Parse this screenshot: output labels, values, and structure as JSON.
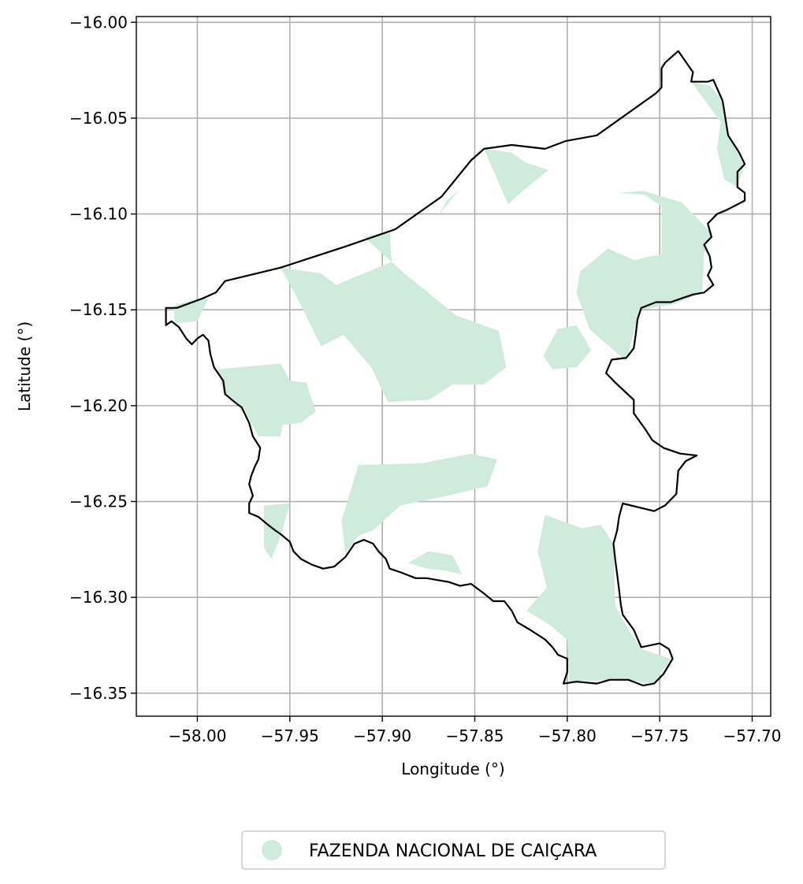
{
  "chart_data": {
    "type": "map",
    "xlabel": "Longitude (°)",
    "ylabel": "Latitude (°)",
    "xlim": [
      -58.033,
      -57.69
    ],
    "ylim": [
      -16.362,
      -15.997
    ],
    "grid": true,
    "x_ticks": [
      {
        "value": -58.0,
        "label": "−58.00"
      },
      {
        "value": -57.95,
        "label": "−57.95"
      },
      {
        "value": -57.9,
        "label": "−57.90"
      },
      {
        "value": -57.85,
        "label": "−57.85"
      },
      {
        "value": -57.8,
        "label": "−57.80"
      },
      {
        "value": -57.75,
        "label": "−57.75"
      },
      {
        "value": -57.7,
        "label": "−57.70"
      }
    ],
    "y_ticks": [
      {
        "value": -16.0,
        "label": "−16.00"
      },
      {
        "value": -16.05,
        "label": "−16.05"
      },
      {
        "value": -16.1,
        "label": "−16.10"
      },
      {
        "value": -16.15,
        "label": "−16.15"
      },
      {
        "value": -16.2,
        "label": "−16.20"
      },
      {
        "value": -16.25,
        "label": "−16.25"
      },
      {
        "value": -16.3,
        "label": "−16.30"
      },
      {
        "value": -16.35,
        "label": "−16.35"
      }
    ],
    "legend": {
      "placement": "bottom-center",
      "entries": [
        {
          "label": "FAZENDA NACIONAL DE CAIÇARA",
          "color": "#ceebdc"
        }
      ]
    },
    "fill_color": "#ceebdc",
    "outline_color": "#000000",
    "boundary": [
      [
        -58.017,
        -16.149
      ],
      [
        -58.011,
        -16.149
      ],
      [
        -57.997,
        -16.144
      ],
      [
        -57.99,
        -16.141
      ],
      [
        -57.985,
        -16.135
      ],
      [
        -57.955,
        -16.128
      ],
      [
        -57.92,
        -16.117
      ],
      [
        -57.893,
        -16.108
      ],
      [
        -57.868,
        -16.091
      ],
      [
        -57.852,
        -16.072
      ],
      [
        -57.845,
        -16.066
      ],
      [
        -57.83,
        -16.064
      ],
      [
        -57.812,
        -16.066
      ],
      [
        -57.801,
        -16.062
      ],
      [
        -57.784,
        -16.059
      ],
      [
        -57.752,
        -16.037
      ],
      [
        -57.749,
        -16.034
      ],
      [
        -57.749,
        -16.024
      ],
      [
        -57.747,
        -16.021
      ],
      [
        -57.74,
        -16.015
      ],
      [
        -57.732,
        -16.026
      ],
      [
        -57.733,
        -16.031
      ],
      [
        -57.724,
        -16.031
      ],
      [
        -57.721,
        -16.03
      ],
      [
        -57.716,
        -16.041
      ],
      [
        -57.713,
        -16.059
      ],
      [
        -57.707,
        -16.068
      ],
      [
        -57.704,
        -16.074
      ],
      [
        -57.708,
        -16.078
      ],
      [
        -57.708,
        -16.086
      ],
      [
        -57.704,
        -16.089
      ],
      [
        -57.704,
        -16.093
      ],
      [
        -57.71,
        -16.096
      ],
      [
        -57.714,
        -16.098
      ],
      [
        -57.719,
        -16.1
      ],
      [
        -57.724,
        -16.105
      ],
      [
        -57.722,
        -16.112
      ],
      [
        -57.726,
        -16.116
      ],
      [
        -57.723,
        -16.122
      ],
      [
        -57.722,
        -16.128
      ],
      [
        -57.724,
        -16.132
      ],
      [
        -57.721,
        -16.137
      ],
      [
        -57.726,
        -16.141
      ],
      [
        -57.732,
        -16.142
      ],
      [
        -57.738,
        -16.144
      ],
      [
        -57.744,
        -16.146
      ],
      [
        -57.752,
        -16.146
      ],
      [
        -57.76,
        -16.149
      ],
      [
        -57.762,
        -16.155
      ],
      [
        -57.763,
        -16.163
      ],
      [
        -57.764,
        -16.17
      ],
      [
        -57.768,
        -16.175
      ],
      [
        -57.776,
        -16.176
      ],
      [
        -57.779,
        -16.183
      ],
      [
        -57.774,
        -16.188
      ],
      [
        -57.764,
        -16.197
      ],
      [
        -57.764,
        -16.204
      ],
      [
        -57.758,
        -16.212
      ],
      [
        -57.754,
        -16.218
      ],
      [
        -57.748,
        -16.222
      ],
      [
        -57.739,
        -16.225
      ],
      [
        -57.73,
        -16.226
      ],
      [
        -57.736,
        -16.229
      ],
      [
        -57.74,
        -16.234
      ],
      [
        -57.741,
        -16.246
      ],
      [
        -57.747,
        -16.252
      ],
      [
        -57.753,
        -16.255
      ],
      [
        -57.77,
        -16.251
      ],
      [
        -57.772,
        -16.258
      ],
      [
        -57.773,
        -16.265
      ],
      [
        -57.775,
        -16.272
      ],
      [
        -57.774,
        -16.281
      ],
      [
        -57.773,
        -16.288
      ],
      [
        -57.772,
        -16.296
      ],
      [
        -57.771,
        -16.304
      ],
      [
        -57.77,
        -16.309
      ],
      [
        -57.764,
        -16.317
      ],
      [
        -57.76,
        -16.326
      ],
      [
        -57.75,
        -16.324
      ],
      [
        -57.745,
        -16.327
      ],
      [
        -57.743,
        -16.332
      ],
      [
        -57.748,
        -16.34
      ],
      [
        -57.753,
        -16.345
      ],
      [
        -57.759,
        -16.346
      ],
      [
        -57.767,
        -16.343
      ],
      [
        -57.777,
        -16.343
      ],
      [
        -57.784,
        -16.345
      ],
      [
        -57.795,
        -16.344
      ],
      [
        -57.802,
        -16.345
      ],
      [
        -57.8,
        -16.339
      ],
      [
        -57.8,
        -16.332
      ],
      [
        -57.805,
        -16.33
      ],
      [
        -57.808,
        -16.326
      ],
      [
        -57.812,
        -16.322
      ],
      [
        -57.82,
        -16.317
      ],
      [
        -57.827,
        -16.313
      ],
      [
        -57.83,
        -16.307
      ],
      [
        -57.834,
        -16.302
      ],
      [
        -57.84,
        -16.302
      ],
      [
        -57.845,
        -16.298
      ],
      [
        -57.852,
        -16.293
      ],
      [
        -57.858,
        -16.294
      ],
      [
        -57.864,
        -16.292
      ],
      [
        -57.87,
        -16.291
      ],
      [
        -57.876,
        -16.29
      ],
      [
        -57.882,
        -16.29
      ],
      [
        -57.89,
        -16.287
      ],
      [
        -57.896,
        -16.285
      ],
      [
        -57.898,
        -16.28
      ],
      [
        -57.902,
        -16.276
      ],
      [
        -57.905,
        -16.272
      ],
      [
        -57.91,
        -16.27
      ],
      [
        -57.915,
        -16.272
      ],
      [
        -57.92,
        -16.279
      ],
      [
        -57.926,
        -16.284
      ],
      [
        -57.932,
        -16.285
      ],
      [
        -57.938,
        -16.283
      ],
      [
        -57.944,
        -16.28
      ],
      [
        -57.948,
        -16.276
      ],
      [
        -57.95,
        -16.271
      ],
      [
        -57.955,
        -16.267
      ],
      [
        -57.958,
        -16.265
      ],
      [
        -57.962,
        -16.262
      ],
      [
        -57.967,
        -16.258
      ],
      [
        -57.972,
        -16.256
      ],
      [
        -57.972,
        -16.251
      ],
      [
        -57.97,
        -16.247
      ],
      [
        -57.972,
        -16.241
      ],
      [
        -57.971,
        -16.237
      ],
      [
        -57.969,
        -16.232
      ],
      [
        -57.967,
        -16.228
      ],
      [
        -57.966,
        -16.222
      ],
      [
        -57.97,
        -16.216
      ],
      [
        -57.972,
        -16.209
      ],
      [
        -57.976,
        -16.201
      ],
      [
        -57.98,
        -16.198
      ],
      [
        -57.985,
        -16.194
      ],
      [
        -57.986,
        -16.187
      ],
      [
        -57.991,
        -16.18
      ],
      [
        -57.993,
        -16.173
      ],
      [
        -57.994,
        -16.166
      ],
      [
        -57.997,
        -16.163
      ],
      [
        -58.0,
        -16.165
      ],
      [
        -58.003,
        -16.168
      ],
      [
        -58.006,
        -16.165
      ],
      [
        -58.01,
        -16.159
      ],
      [
        -58.014,
        -16.156
      ],
      [
        -58.017,
        -16.158
      ],
      [
        -58.017,
        -16.149
      ]
    ],
    "zones": [
      [
        [
          -58.013,
          -16.148
        ],
        [
          -58.003,
          -16.145
        ],
        [
          -57.994,
          -16.144
        ],
        [
          -58.0,
          -16.156
        ],
        [
          -58.012,
          -16.157
        ]
      ],
      [
        [
          -57.989,
          -16.181
        ],
        [
          -57.955,
          -16.178
        ],
        [
          -57.95,
          -16.187
        ],
        [
          -57.941,
          -16.188
        ],
        [
          -57.936,
          -16.203
        ],
        [
          -57.944,
          -16.209
        ],
        [
          -57.954,
          -16.21
        ],
        [
          -57.955,
          -16.216
        ],
        [
          -57.967,
          -16.216
        ],
        [
          -57.976,
          -16.2
        ],
        [
          -57.986,
          -16.193
        ]
      ],
      [
        [
          -57.955,
          -16.128
        ],
        [
          -57.933,
          -16.131
        ],
        [
          -57.925,
          -16.137
        ],
        [
          -57.895,
          -16.125
        ],
        [
          -57.896,
          -16.109
        ],
        [
          -57.91,
          -16.112
        ],
        [
          -57.888,
          -16.131
        ],
        [
          -57.86,
          -16.153
        ],
        [
          -57.837,
          -16.161
        ],
        [
          -57.833,
          -16.18
        ],
        [
          -57.845,
          -16.189
        ],
        [
          -57.862,
          -16.189
        ],
        [
          -57.875,
          -16.197
        ],
        [
          -57.897,
          -16.198
        ],
        [
          -57.906,
          -16.18
        ],
        [
          -57.921,
          -16.163
        ],
        [
          -57.933,
          -16.169
        ],
        [
          -57.946,
          -16.144
        ]
      ],
      [
        [
          -57.865,
          -16.093
        ],
        [
          -57.858,
          -16.087
        ],
        [
          -57.87,
          -16.101
        ]
      ],
      [
        [
          -57.845,
          -16.066
        ],
        [
          -57.83,
          -16.068
        ],
        [
          -57.823,
          -16.073
        ],
        [
          -57.81,
          -16.077
        ],
        [
          -57.823,
          -16.087
        ],
        [
          -57.832,
          -16.095
        ],
        [
          -57.841,
          -16.075
        ]
      ],
      [
        [
          -57.773,
          -16.089
        ],
        [
          -57.758,
          -16.09
        ],
        [
          -57.749,
          -16.096
        ],
        [
          -57.749,
          -16.121
        ],
        [
          -57.764,
          -16.124
        ],
        [
          -57.778,
          -16.118
        ],
        [
          -57.793,
          -16.13
        ],
        [
          -57.795,
          -16.141
        ],
        [
          -57.788,
          -16.16
        ],
        [
          -57.768,
          -16.177
        ],
        [
          -57.761,
          -16.15
        ],
        [
          -57.742,
          -16.147
        ],
        [
          -57.727,
          -16.141
        ],
        [
          -57.726,
          -16.121
        ],
        [
          -57.722,
          -16.11
        ],
        [
          -57.738,
          -16.094
        ],
        [
          -57.759,
          -16.088
        ]
      ],
      [
        [
          -57.733,
          -16.031
        ],
        [
          -57.723,
          -16.033
        ],
        [
          -57.716,
          -16.041
        ],
        [
          -57.713,
          -16.059
        ],
        [
          -57.707,
          -16.068
        ],
        [
          -57.704,
          -16.074
        ],
        [
          -57.708,
          -16.086
        ],
        [
          -57.715,
          -16.082
        ],
        [
          -57.719,
          -16.066
        ],
        [
          -57.717,
          -16.052
        ]
      ],
      [
        [
          -57.805,
          -16.16
        ],
        [
          -57.795,
          -16.158
        ],
        [
          -57.787,
          -16.171
        ],
        [
          -57.795,
          -16.18
        ],
        [
          -57.808,
          -16.181
        ],
        [
          -57.813,
          -16.174
        ]
      ],
      [
        [
          -57.913,
          -16.231
        ],
        [
          -57.878,
          -16.23
        ],
        [
          -57.852,
          -16.225
        ],
        [
          -57.838,
          -16.228
        ],
        [
          -57.843,
          -16.242
        ],
        [
          -57.865,
          -16.247
        ],
        [
          -57.89,
          -16.252
        ],
        [
          -57.905,
          -16.265
        ],
        [
          -57.913,
          -16.268
        ],
        [
          -57.92,
          -16.277
        ],
        [
          -57.922,
          -16.26
        ]
      ],
      [
        [
          -57.95,
          -16.251
        ],
        [
          -57.955,
          -16.268
        ],
        [
          -57.96,
          -16.28
        ],
        [
          -57.964,
          -16.274
        ],
        [
          -57.964,
          -16.252
        ]
      ],
      [
        [
          -57.886,
          -16.282
        ],
        [
          -57.876,
          -16.285
        ],
        [
          -57.866,
          -16.286
        ],
        [
          -57.857,
          -16.288
        ],
        [
          -57.862,
          -16.278
        ],
        [
          -57.875,
          -16.276
        ]
      ],
      [
        [
          -57.812,
          -16.257
        ],
        [
          -57.792,
          -16.264
        ],
        [
          -57.782,
          -16.262
        ],
        [
          -57.775,
          -16.272
        ],
        [
          -57.774,
          -16.305
        ],
        [
          -57.766,
          -16.318
        ],
        [
          -57.76,
          -16.327
        ],
        [
          -57.744,
          -16.332
        ],
        [
          -57.753,
          -16.345
        ],
        [
          -57.773,
          -16.343
        ],
        [
          -57.799,
          -16.344
        ],
        [
          -57.8,
          -16.322
        ],
        [
          -57.81,
          -16.314
        ],
        [
          -57.822,
          -16.307
        ],
        [
          -57.811,
          -16.295
        ],
        [
          -57.816,
          -16.276
        ]
      ]
    ]
  }
}
